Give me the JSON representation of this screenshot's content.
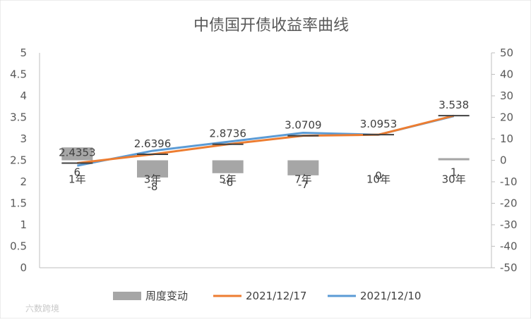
{
  "chart_data": {
    "type": "bar",
    "title": "中债国开债收益率曲线",
    "categories": [
      "1年",
      "3年",
      "5年",
      "7年",
      "10年",
      "30年"
    ],
    "series": [
      {
        "name": "周度变动",
        "type": "bar",
        "axis": "right",
        "values": [
          6,
          -8,
          -6,
          -7,
          0,
          1
        ],
        "labels": [
          "6",
          "-8",
          "-6",
          "-7",
          "0",
          "1"
        ],
        "color": "#a6a6a6"
      },
      {
        "name": "2021/12/17",
        "type": "line",
        "axis": "left",
        "values": [
          2.4353,
          2.6396,
          2.8736,
          3.0709,
          3.0953,
          3.538
        ],
        "labels": [
          "2.4353",
          "2.6396",
          "2.8736",
          "3.0709",
          "3.0953",
          "3.538"
        ],
        "color": "#ed7d31"
      },
      {
        "name": "2021/12/10",
        "type": "line",
        "axis": "left",
        "values": [
          2.375,
          2.72,
          2.93,
          3.14,
          3.095,
          3.528
        ],
        "color": "#5b9bd5"
      }
    ],
    "y_left": {
      "min": 0,
      "max": 5,
      "ticks": [
        "0",
        "0.5",
        "1",
        "1.5",
        "2",
        "2.5",
        "3",
        "3.5",
        "4",
        "4.5",
        "5"
      ]
    },
    "y_right": {
      "min": -50,
      "max": 50,
      "ticks": [
        "-50",
        "-40",
        "-30",
        "-20",
        "-10",
        "0",
        "10",
        "20",
        "30",
        "40",
        "50"
      ]
    },
    "grid": false,
    "legend": "bottom"
  },
  "watermark": "六数跨境",
  "colors": {
    "axis": "#bfbfbf",
    "marker": "#404040"
  }
}
